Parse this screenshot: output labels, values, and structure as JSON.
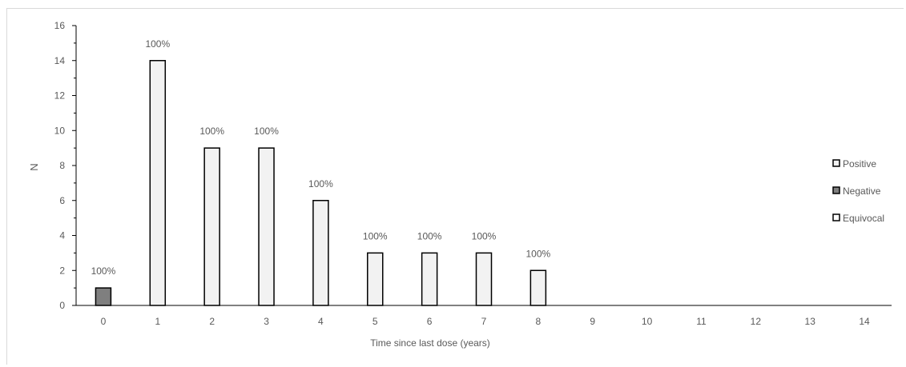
{
  "chart_data": {
    "type": "bar",
    "title": "",
    "xlabel": "Time since last dose (years)",
    "ylabel": "N",
    "ylim": [
      0,
      16
    ],
    "y_ticks": [
      0,
      2,
      4,
      6,
      8,
      10,
      12,
      14,
      16
    ],
    "categories": [
      "0",
      "1",
      "2",
      "3",
      "4",
      "5",
      "6",
      "7",
      "8",
      "9",
      "10",
      "11",
      "12",
      "13",
      "14"
    ],
    "series": [
      {
        "name": "Positive",
        "color": "#f2f2f2",
        "values": [
          0,
          14,
          9,
          9,
          6,
          3,
          3,
          3,
          2,
          0,
          0,
          0,
          0,
          0,
          0
        ]
      },
      {
        "name": "Negative",
        "color": "#7f7f7f",
        "values": [
          1,
          0,
          0,
          0,
          0,
          0,
          0,
          0,
          0,
          0,
          0,
          0,
          0,
          0,
          0
        ]
      },
      {
        "name": "Equivocal",
        "color": "#ffffff",
        "values": [
          0,
          0,
          0,
          0,
          0,
          0,
          0,
          0,
          0,
          0,
          0,
          0,
          0,
          0,
          0
        ]
      }
    ],
    "data_labels": [
      "100%",
      "100%",
      "100%",
      "100%",
      "100%",
      "100%",
      "100%",
      "100%",
      "100%",
      "",
      "",
      "",
      "",
      "",
      ""
    ],
    "legend_position": "right",
    "grid": false
  }
}
